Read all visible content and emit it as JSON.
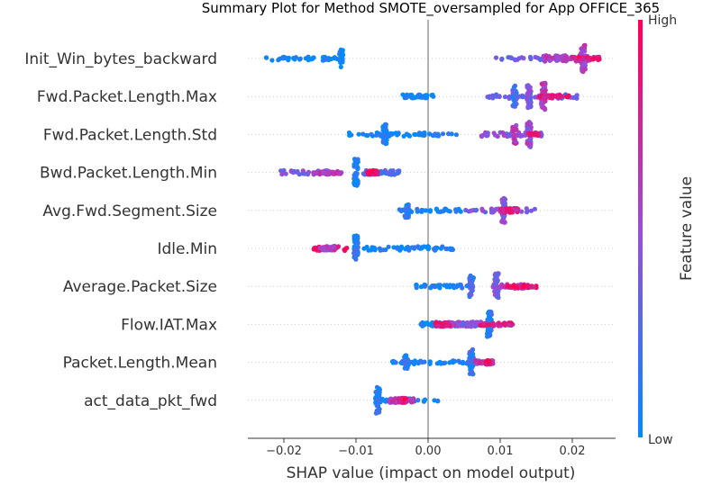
{
  "chart_data": {
    "type": "scatter",
    "subtype": "shap-beeswarm",
    "title": "Summary Plot for Method SMOTE_oversampled for App OFFICE_365",
    "xlabel": "SHAP value (impact on model output)",
    "xlim": [
      -0.025,
      0.026
    ],
    "xticks": [
      -0.02,
      -0.01,
      0.0,
      0.01,
      0.02
    ],
    "xtick_labels": [
      "−0.02",
      "−0.01",
      "0.00",
      "0.01",
      "0.02"
    ],
    "zero_line": 0.0,
    "grid": false,
    "colorbar": {
      "label": "Feature value",
      "high_label": "High",
      "low_label": "Low",
      "low_color": "#008bfb",
      "high_color": "#ff0052",
      "mid_color": "#9c4dd9"
    },
    "features": [
      {
        "name": "Init_Win_bytes_backward",
        "clusters": [
          [
            -0.0225,
            -0.0125,
            0.45,
            0.02
          ],
          [
            -0.012,
            -0.012,
            0.65,
            0.05
          ],
          [
            0.009,
            0.0195,
            0.35,
            0.3
          ],
          [
            0.016,
            0.0225,
            0.7,
            0.6
          ],
          [
            0.0215,
            0.0215,
            1.0,
            0.55
          ],
          [
            0.02,
            0.024,
            0.35,
            0.8
          ]
        ]
      },
      {
        "name": "Fwd.Packet.Length.Max",
        "clusters": [
          [
            -0.0035,
            0.001,
            0.4,
            0.05
          ],
          [
            0.008,
            0.021,
            0.45,
            0.35
          ],
          [
            0.012,
            0.012,
            0.8,
            0.25
          ],
          [
            0.014,
            0.014,
            0.9,
            0.4
          ],
          [
            0.016,
            0.016,
            1.0,
            0.65
          ],
          [
            0.015,
            0.0195,
            0.3,
            0.85
          ]
        ]
      },
      {
        "name": "Fwd.Packet.Length.Std",
        "clusters": [
          [
            -0.011,
            0.004,
            0.4,
            0.05
          ],
          [
            -0.006,
            -0.006,
            0.75,
            0.1
          ],
          [
            0.007,
            0.016,
            0.45,
            0.45
          ],
          [
            0.012,
            0.012,
            0.7,
            0.6
          ],
          [
            0.014,
            0.014,
            0.95,
            0.5
          ],
          [
            0.014,
            0.0155,
            0.3,
            0.9
          ]
        ]
      },
      {
        "name": "Bwd.Packet.Length.Min",
        "clusters": [
          [
            -0.0205,
            -0.012,
            0.45,
            0.4
          ],
          [
            -0.01,
            -0.01,
            1.0,
            0.1
          ],
          [
            -0.009,
            -0.004,
            0.5,
            0.25
          ],
          [
            -0.0085,
            -0.007,
            0.45,
            0.9
          ],
          [
            -0.016,
            -0.012,
            0.35,
            0.65
          ]
        ]
      },
      {
        "name": "Avg.Fwd.Segment.Size",
        "clusters": [
          [
            -0.004,
            0.005,
            0.35,
            0.05
          ],
          [
            -0.003,
            -0.003,
            0.55,
            0.1
          ],
          [
            0.005,
            0.015,
            0.45,
            0.4
          ],
          [
            0.0105,
            0.0105,
            1.0,
            0.45
          ],
          [
            0.01,
            0.0125,
            0.5,
            0.8
          ]
        ]
      },
      {
        "name": "Idle.Min",
        "clusters": [
          [
            -0.016,
            -0.011,
            0.5,
            0.85
          ],
          [
            -0.01,
            -0.01,
            1.0,
            0.1
          ],
          [
            -0.0095,
            0.0035,
            0.45,
            0.05
          ],
          [
            -0.015,
            -0.013,
            0.4,
            0.55
          ]
        ]
      },
      {
        "name": "Average.Packet.Size",
        "clusters": [
          [
            -0.002,
            0.006,
            0.4,
            0.05
          ],
          [
            0.006,
            0.006,
            0.8,
            0.25
          ],
          [
            0.009,
            0.014,
            0.45,
            0.6
          ],
          [
            0.0095,
            0.0095,
            1.0,
            0.4
          ],
          [
            0.011,
            0.015,
            0.35,
            0.9
          ]
        ]
      },
      {
        "name": "Flow.IAT.Max",
        "clusters": [
          [
            -0.001,
            0.004,
            0.4,
            0.05
          ],
          [
            0.001,
            0.005,
            0.5,
            0.65
          ],
          [
            0.004,
            0.0075,
            0.55,
            0.45
          ],
          [
            0.0085,
            0.0085,
            1.0,
            0.1
          ],
          [
            0.001,
            0.003,
            0.4,
            0.85
          ],
          [
            0.007,
            0.012,
            0.35,
            0.8
          ]
        ]
      },
      {
        "name": "Packet.Length.Mean",
        "clusters": [
          [
            -0.005,
            0.009,
            0.4,
            0.05
          ],
          [
            -0.003,
            -0.003,
            0.55,
            0.1
          ],
          [
            0.006,
            0.006,
            1.0,
            0.15
          ],
          [
            0.0065,
            0.009,
            0.45,
            0.65
          ],
          [
            0.008,
            0.0085,
            0.4,
            0.9
          ]
        ]
      },
      {
        "name": "act_data_pkt_fwd",
        "clusters": [
          [
            -0.0075,
            0.0015,
            0.45,
            0.05
          ],
          [
            -0.007,
            -0.007,
            1.0,
            0.1
          ],
          [
            -0.0055,
            -0.002,
            0.55,
            0.6
          ],
          [
            -0.004,
            -0.003,
            0.45,
            0.85
          ]
        ]
      }
    ]
  }
}
